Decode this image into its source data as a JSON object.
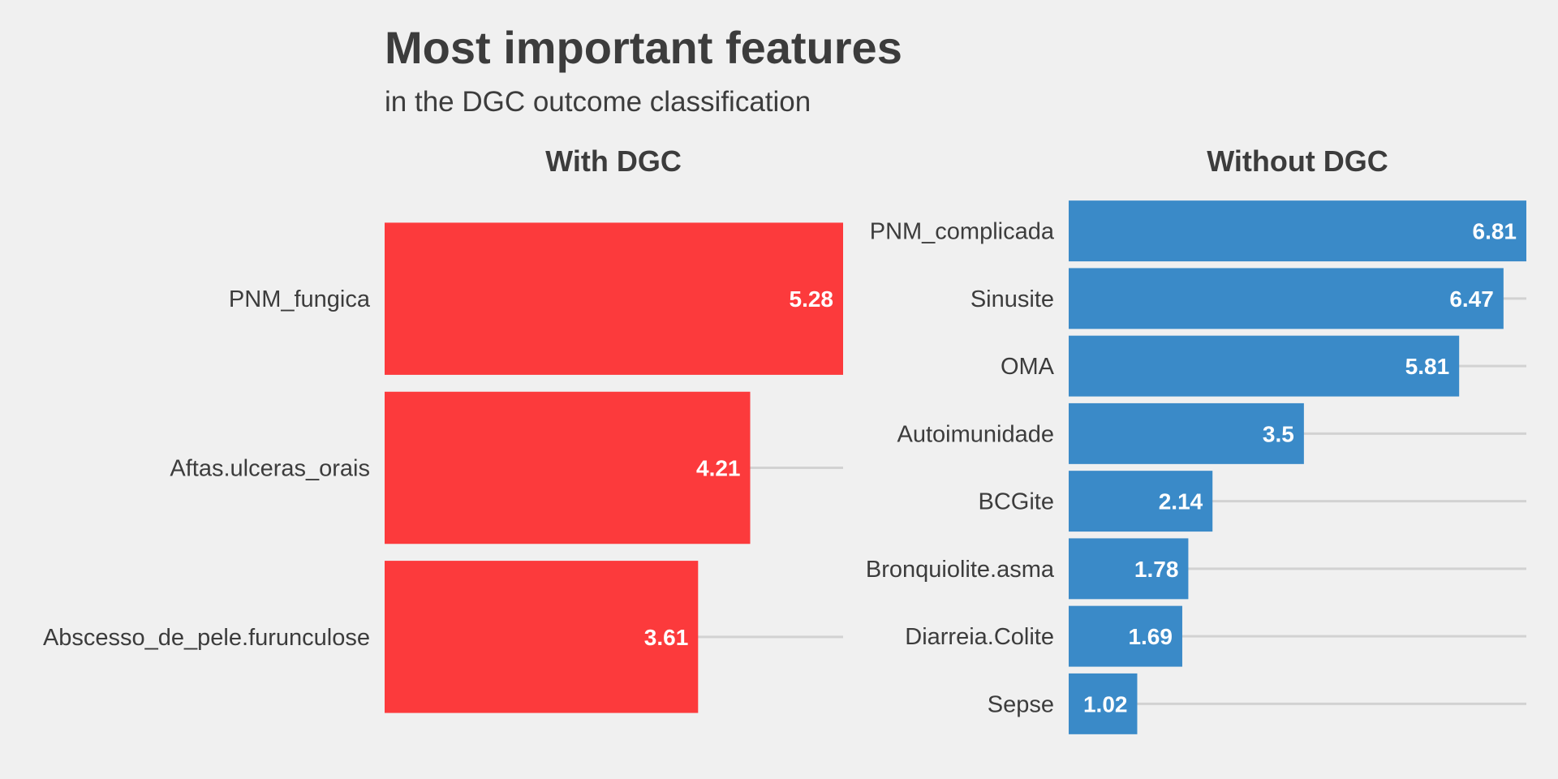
{
  "chart_data": [
    {
      "type": "bar",
      "orientation": "horizontal",
      "title": "Most important features",
      "subtitle": "in the DGC outcome classification",
      "panel_title": "With DGC",
      "color": "#fc3a3c",
      "categories": [
        "PNM_fungica",
        "Aftas.ulceras_orais",
        "Abscesso_de_pele.furunculose"
      ],
      "values": [
        5.28,
        4.21,
        3.61
      ],
      "value_labels": [
        "5.28",
        "4.21",
        "3.61"
      ],
      "xlim": [
        0,
        5.28
      ],
      "grid": true
    },
    {
      "type": "bar",
      "orientation": "horizontal",
      "panel_title": "Without DGC",
      "color": "#3a8ac8",
      "categories": [
        "PNM_complicada",
        "Sinusite",
        "OMA",
        "Autoimunidade",
        "BCGite",
        "Bronquiolite.asma",
        "Diarreia.Colite",
        "Sepse"
      ],
      "values": [
        6.81,
        6.47,
        5.81,
        3.5,
        2.14,
        1.78,
        1.69,
        1.02
      ],
      "value_labels": [
        "6.81",
        "6.47",
        "5.81",
        "3.5",
        "2.14",
        "1.78",
        "1.69",
        "1.02"
      ],
      "xlim": [
        0,
        6.81
      ],
      "grid": true
    }
  ]
}
